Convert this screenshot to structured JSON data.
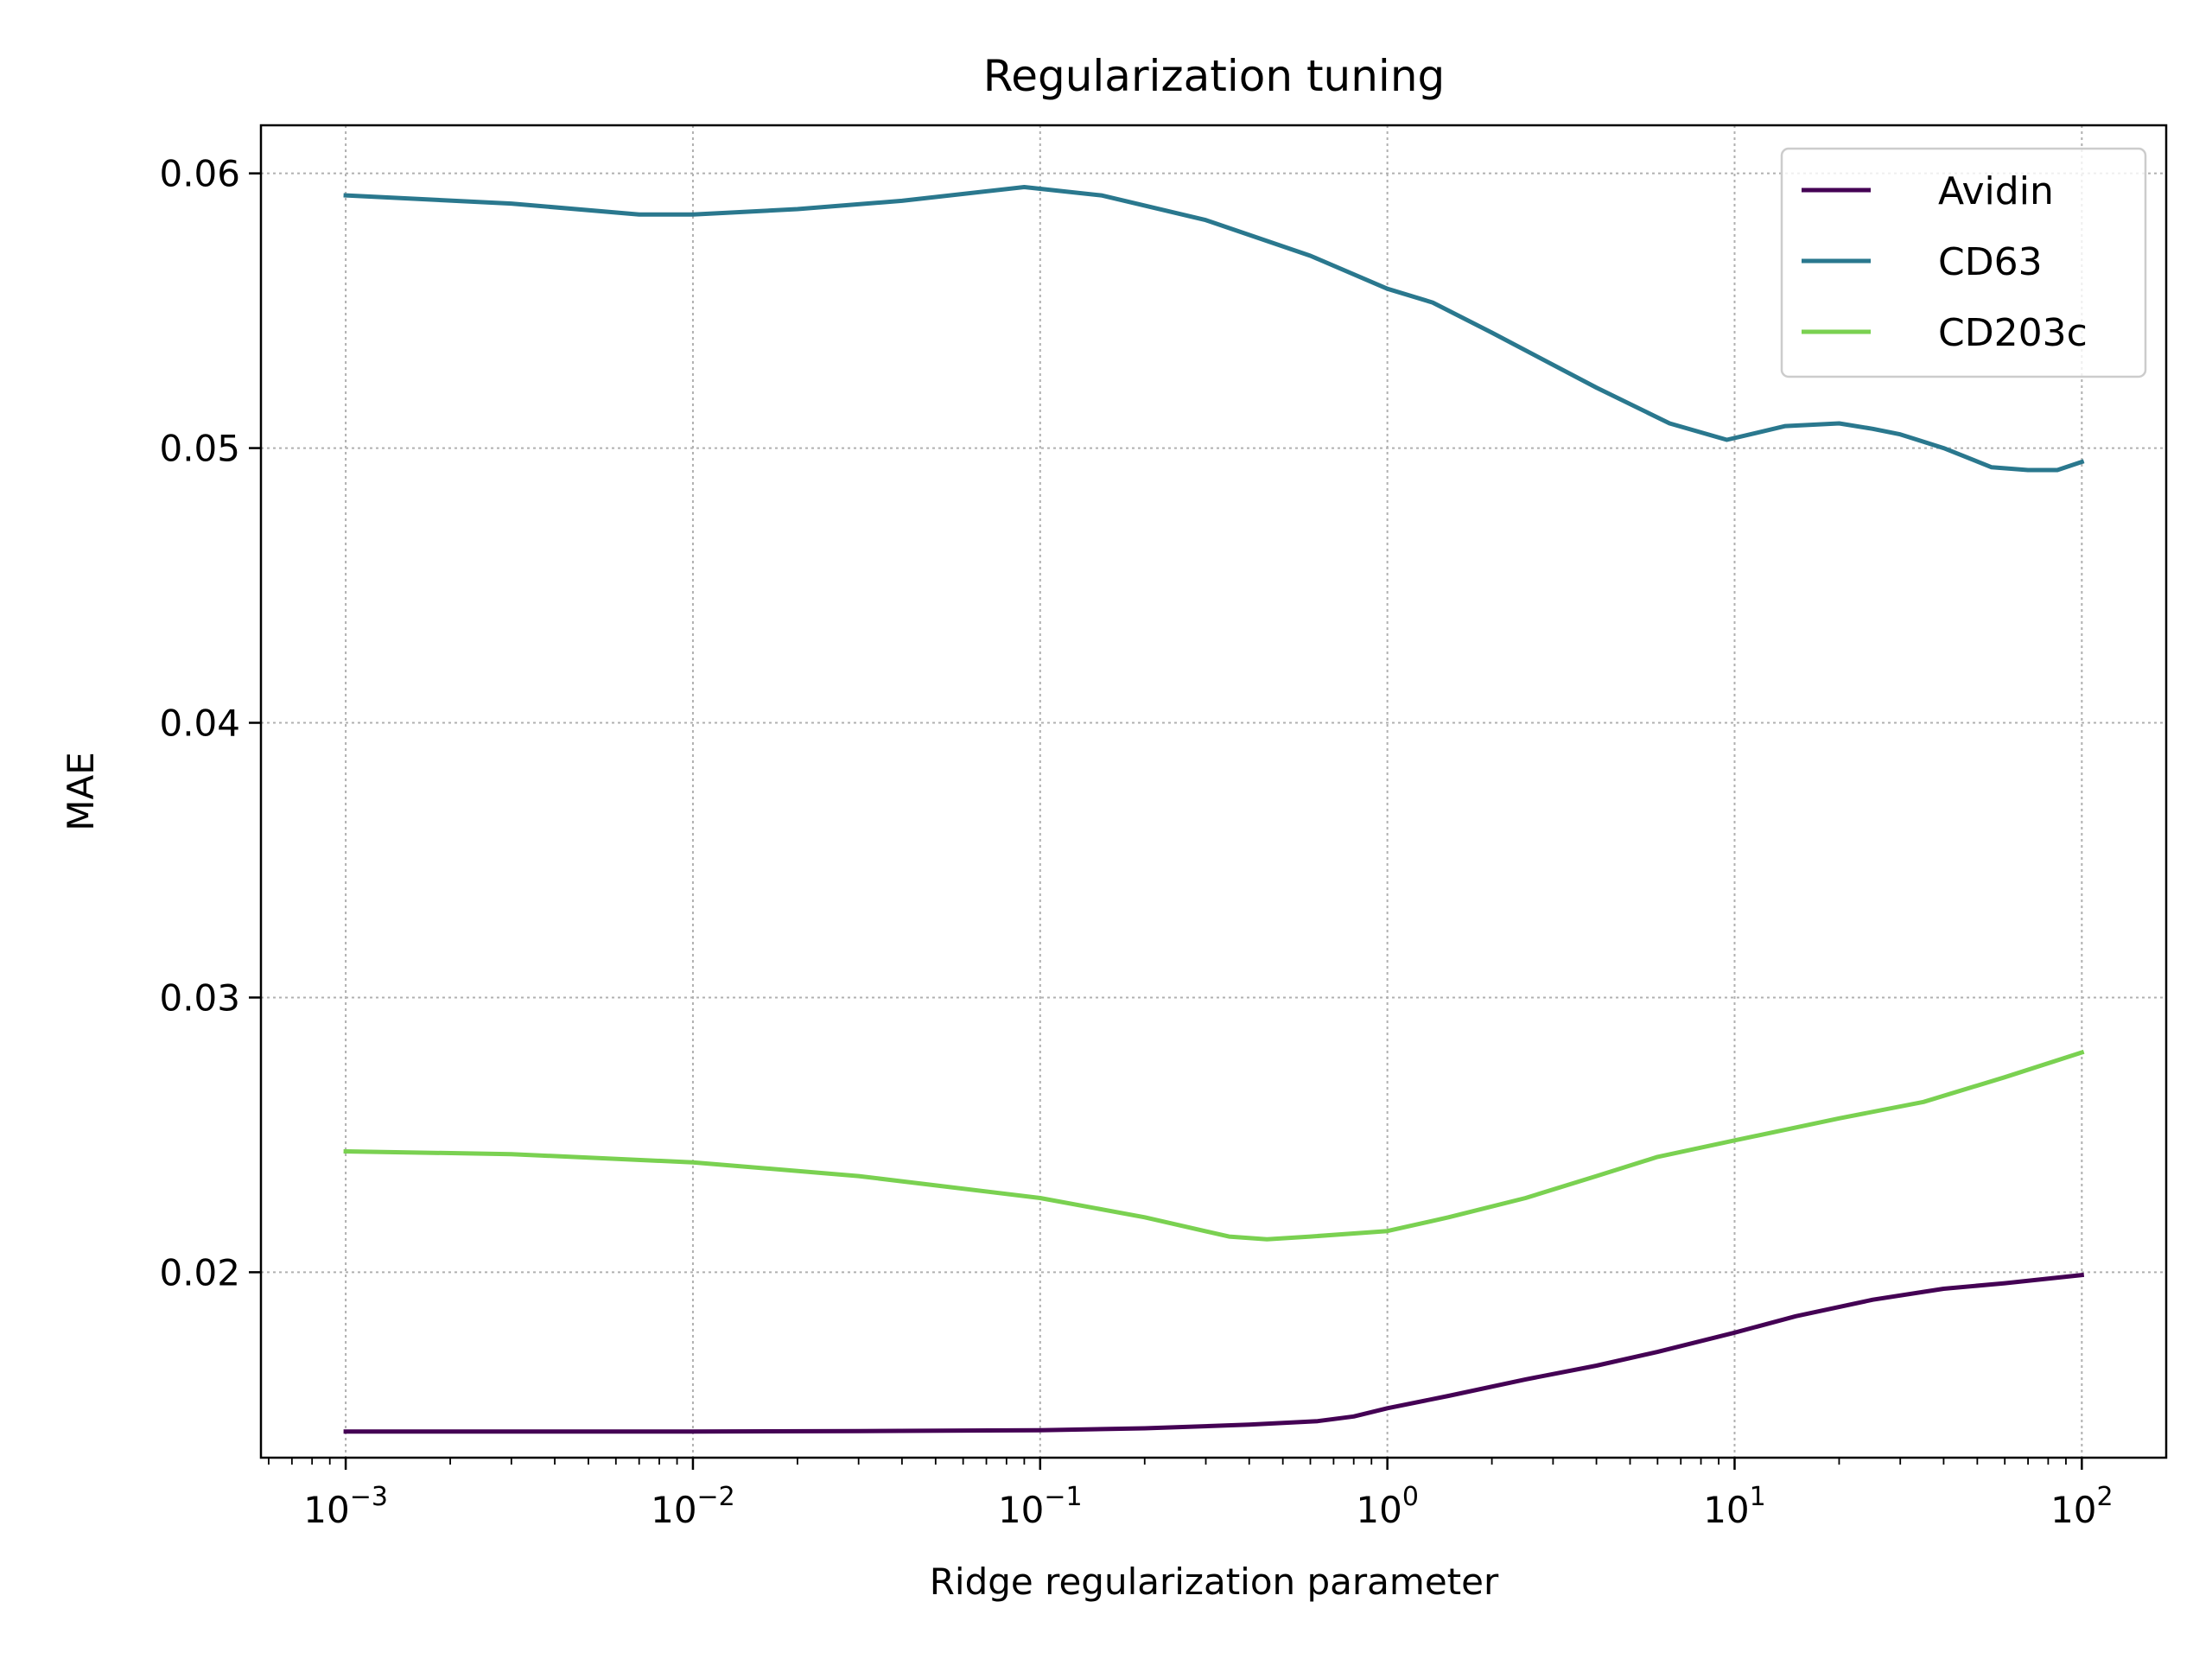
{
  "chart_data": {
    "type": "line",
    "title": "Regularization tuning",
    "xlabel": "Ridge regularization parameter",
    "ylabel": "MAE",
    "xscale": "log",
    "xlim": [
      0.00057,
      175
    ],
    "ylim": [
      0.01325,
      0.06175
    ],
    "x_ticks": [
      0.001,
      0.01,
      0.1,
      1,
      10,
      100
    ],
    "x_tick_labels": [
      {
        "base": "10",
        "exp": "−3"
      },
      {
        "base": "10",
        "exp": "−2"
      },
      {
        "base": "10",
        "exp": "−1"
      },
      {
        "base": "10",
        "exp": "0"
      },
      {
        "base": "10",
        "exp": "1"
      },
      {
        "base": "10",
        "exp": "2"
      }
    ],
    "y_ticks": [
      0.02,
      0.03,
      0.04,
      0.05,
      0.06
    ],
    "y_tick_labels": [
      "0.02",
      "0.03",
      "0.04",
      "0.05",
      "0.06"
    ],
    "grid": true,
    "legend": "top-right",
    "series": [
      {
        "name": "Avidin",
        "color": "#440154",
        "x": [
          0.001,
          0.003,
          0.01,
          0.03,
          0.1,
          0.2,
          0.4,
          0.63,
          0.8,
          1,
          1.5,
          2.5,
          4,
          6,
          10,
          15,
          25,
          40,
          60,
          100
        ],
        "y": [
          0.0142,
          0.0142,
          0.0142,
          0.01422,
          0.01425,
          0.01432,
          0.01445,
          0.01458,
          0.01475,
          0.01505,
          0.0155,
          0.0161,
          0.0166,
          0.0171,
          0.0178,
          0.0184,
          0.019,
          0.0194,
          0.0196,
          0.0199
        ]
      },
      {
        "name": "CD63",
        "color": "#2a788e",
        "x": [
          0.001,
          0.003,
          0.007,
          0.01,
          0.02,
          0.04,
          0.09,
          0.15,
          0.3,
          0.6,
          1,
          1.35,
          2,
          4,
          6.5,
          9.5,
          14,
          20,
          25,
          30,
          40,
          55,
          70,
          85,
          100
        ],
        "y": [
          0.0592,
          0.0589,
          0.0585,
          0.0585,
          0.0587,
          0.059,
          0.0595,
          0.0592,
          0.0583,
          0.057,
          0.0558,
          0.0553,
          0.0542,
          0.0522,
          0.0509,
          0.0503,
          0.0508,
          0.0509,
          0.0507,
          0.0505,
          0.05,
          0.0493,
          0.0492,
          0.0492,
          0.0495
        ]
      },
      {
        "name": "CD203c",
        "color": "#7ad151",
        "x": [
          0.001,
          0.003,
          0.01,
          0.03,
          0.1,
          0.2,
          0.35,
          0.45,
          0.6,
          1,
          1.5,
          2.5,
          4,
          6,
          10,
          20,
          35,
          60,
          100
        ],
        "y": [
          0.0244,
          0.0243,
          0.024,
          0.0235,
          0.0227,
          0.022,
          0.0213,
          0.0212,
          0.0213,
          0.0215,
          0.022,
          0.0227,
          0.0235,
          0.0242,
          0.0248,
          0.0256,
          0.0262,
          0.0271,
          0.028
        ]
      }
    ]
  }
}
